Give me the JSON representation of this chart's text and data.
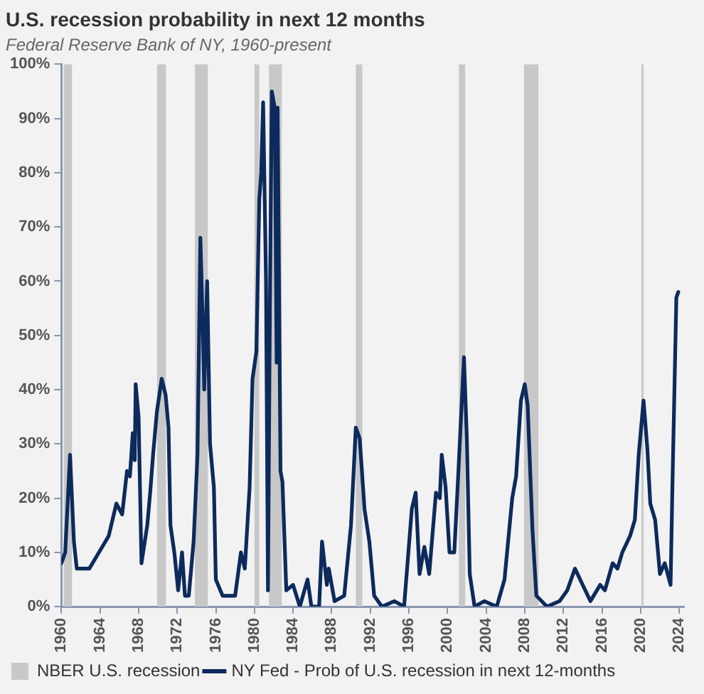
{
  "chart_data": {
    "type": "line",
    "title": "U.S. recession probability in next 12 months",
    "subtitle": "Federal Reserve Bank of NY, 1960-present",
    "xlim": [
      1960,
      2024.5
    ],
    "xticks": [
      1960,
      1964,
      1968,
      1972,
      1976,
      1980,
      1984,
      1988,
      1992,
      1996,
      2000,
      2004,
      2008,
      2012,
      2016,
      2020,
      2024
    ],
    "ylim": [
      0,
      100
    ],
    "yticks": [
      {
        "value": 0,
        "label": "0%"
      },
      {
        "value": 10,
        "label": "10%"
      },
      {
        "value": 20,
        "label": "20%"
      },
      {
        "value": 30,
        "label": "30%"
      },
      {
        "value": 40,
        "label": "40%"
      },
      {
        "value": 50,
        "label": "50%"
      },
      {
        "value": 60,
        "label": "60%"
      },
      {
        "value": 70,
        "label": "70%"
      },
      {
        "value": 80,
        "label": "80%"
      },
      {
        "value": 90,
        "label": "90%"
      },
      {
        "value": 100,
        "label": "100%"
      }
    ],
    "grid": false,
    "legend": "bottom",
    "marker": "none",
    "line_style": "solid",
    "bands": [
      {
        "axis": "x",
        "from": 1960.25,
        "to": 1961.1,
        "label": "NBER U.S. recession",
        "color": "#c8c8c8"
      },
      {
        "axis": "x",
        "from": 1969.92,
        "to": 1970.83,
        "color": "#c8c8c8"
      },
      {
        "axis": "x",
        "from": 1973.83,
        "to": 1975.17,
        "color": "#c8c8c8"
      },
      {
        "axis": "x",
        "from": 1980.0,
        "to": 1980.5,
        "color": "#c8c8c8"
      },
      {
        "axis": "x",
        "from": 1981.5,
        "to": 1982.83,
        "color": "#c8c8c8"
      },
      {
        "axis": "x",
        "from": 1990.5,
        "to": 1991.17,
        "color": "#c8c8c8"
      },
      {
        "axis": "x",
        "from": 2001.17,
        "to": 2001.83,
        "color": "#c8c8c8"
      },
      {
        "axis": "x",
        "from": 2007.92,
        "to": 2009.42,
        "color": "#c8c8c8"
      },
      {
        "axis": "x",
        "from": 2020.08,
        "to": 2020.25,
        "color": "#c8c8c8"
      }
    ],
    "series": [
      {
        "name": "NY Fed - Prob of U.S. recession in next 12-months",
        "color": "#0d2a5c",
        "x": [
          1960.0,
          1960.4,
          1960.9,
          1961.3,
          1961.6,
          1962.9,
          1963.9,
          1964.9,
          1965.7,
          1966.3,
          1966.8,
          1967.1,
          1967.4,
          1967.6,
          1967.7,
          1968.0,
          1968.3,
          1968.9,
          1969.2,
          1969.5,
          1969.9,
          1970.4,
          1970.8,
          1971.1,
          1971.3,
          1971.7,
          1972.1,
          1972.5,
          1972.8,
          1973.2,
          1973.7,
          1974.1,
          1974.4,
          1974.6,
          1974.8,
          1975.1,
          1975.4,
          1975.8,
          1976.0,
          1976.7,
          1978.0,
          1978.6,
          1979.0,
          1979.5,
          1979.8,
          1980.2,
          1980.5,
          1980.7,
          1980.9,
          1981.2,
          1981.4,
          1981.6,
          1981.8,
          1982.1,
          1982.3,
          1982.4,
          1982.7,
          1982.9,
          1983.3,
          1984.0,
          1984.7,
          1985.5,
          1985.9,
          1986.7,
          1987.0,
          1987.5,
          1987.7,
          1988.3,
          1989.3,
          1990.0,
          1990.5,
          1990.9,
          1991.4,
          1991.9,
          1992.4,
          1993.2,
          1994.5,
          1995.5,
          1996.3,
          1996.7,
          1997.1,
          1997.6,
          1998.1,
          1998.8,
          1999.2,
          1999.4,
          1999.8,
          2000.2,
          2000.7,
          2001.1,
          2001.7,
          2002.0,
          2002.3,
          2002.8,
          2003.8,
          2005.1,
          2005.9,
          2006.7,
          2007.1,
          2007.6,
          2008.0,
          2008.3,
          2008.8,
          2009.2,
          2010.3,
          2011.6,
          2012.4,
          2013.2,
          2014.0,
          2014.8,
          2015.8,
          2016.3,
          2017.1,
          2017.6,
          2018.1,
          2018.9,
          2019.4,
          2019.8,
          2020.3,
          2020.7,
          2021.0,
          2021.5,
          2022.0,
          2022.5,
          2023.1,
          2023.3,
          2023.7,
          2023.9
        ],
        "values": [
          8,
          10,
          28,
          12,
          7,
          7,
          10,
          13,
          19,
          17,
          25,
          24,
          32,
          27,
          41,
          35,
          8,
          15,
          21,
          28,
          36,
          42,
          39,
          33,
          15,
          10,
          3,
          10,
          2,
          2,
          12,
          28,
          68,
          55,
          40,
          60,
          30,
          22,
          5,
          2,
          2,
          10,
          7,
          22,
          42,
          47,
          75,
          80,
          93,
          60,
          3,
          55,
          95,
          92,
          45,
          92,
          25,
          23,
          3,
          4,
          0,
          5,
          0,
          0,
          12,
          4,
          7,
          1,
          2,
          15,
          33,
          31,
          18,
          12,
          2,
          0,
          1,
          0,
          18,
          21,
          6,
          11,
          6,
          21,
          20,
          28,
          22,
          10,
          10,
          24,
          46,
          31,
          6,
          0,
          1,
          0,
          5,
          20,
          24,
          38,
          41,
          37,
          14,
          2,
          0,
          1,
          3,
          7,
          4,
          1,
          4,
          3,
          8,
          7,
          10,
          13,
          16,
          28,
          38,
          29,
          19,
          16,
          6,
          8,
          4,
          23,
          57,
          58
        ]
      }
    ]
  }
}
